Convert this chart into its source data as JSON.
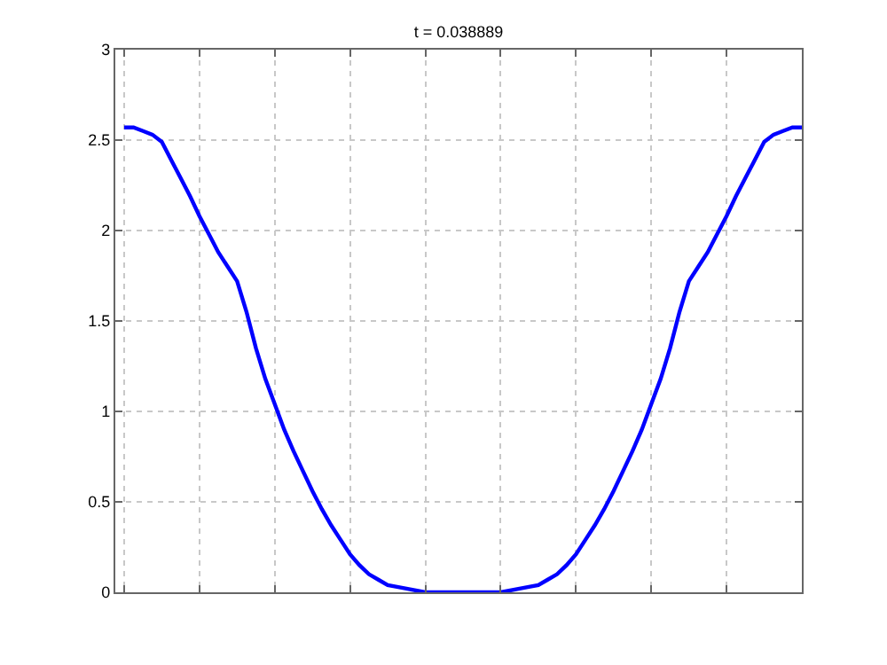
{
  "chart_data": {
    "type": "line",
    "title": "t = 0.038889",
    "categories": [
      null,
      null,
      null,
      null,
      null,
      null,
      null,
      null,
      null,
      null,
      null,
      null,
      null,
      null,
      null,
      null,
      null,
      null,
      null,
      null,
      null,
      null,
      null,
      null,
      null,
      null,
      null,
      null,
      null,
      null,
      null,
      null,
      null,
      null,
      null,
      null,
      null,
      null,
      null,
      null,
      null,
      null,
      null,
      null,
      null,
      null,
      null,
      null,
      null,
      null,
      null,
      null,
      null,
      null,
      null,
      null,
      null,
      null,
      null,
      null,
      null,
      null,
      null,
      null,
      null,
      null,
      null,
      null,
      null,
      null,
      null,
      null,
      null
    ],
    "series": [
      {
        "color": "#0000ff",
        "values": [
          2.57,
          2.57,
          2.55,
          2.53,
          2.49,
          2.39,
          2.29,
          2.19,
          2.08,
          1.98,
          1.88,
          1.8,
          1.72,
          1.55,
          1.35,
          1.18,
          1.04,
          0.9,
          0.78,
          0.67,
          0.56,
          0.46,
          0.37,
          0.29,
          0.21,
          0.15,
          0.1,
          0.07,
          0.04,
          0.03,
          0.02,
          0.01,
          0,
          0,
          0,
          0,
          0,
          0,
          0,
          0,
          0,
          0.01,
          0.02,
          0.03,
          0.04,
          0.07,
          0.1,
          0.15,
          0.21,
          0.29,
          0.37,
          0.46,
          0.56,
          0.67,
          0.78,
          0.9,
          1.04,
          1.18,
          1.35,
          1.55,
          1.72,
          1.8,
          1.88,
          1.98,
          2.08,
          2.19,
          2.29,
          2.39,
          2.49,
          2.53,
          2.55,
          2.57,
          2.57
        ]
      }
    ],
    "ylim": [
      0,
      3
    ],
    "yticks": [
      0,
      0.5,
      1,
      1.5,
      2,
      2.5,
      3
    ],
    "grid": true,
    "marker": "none",
    "line_style": "solid",
    "tick_labels": "y"
  }
}
